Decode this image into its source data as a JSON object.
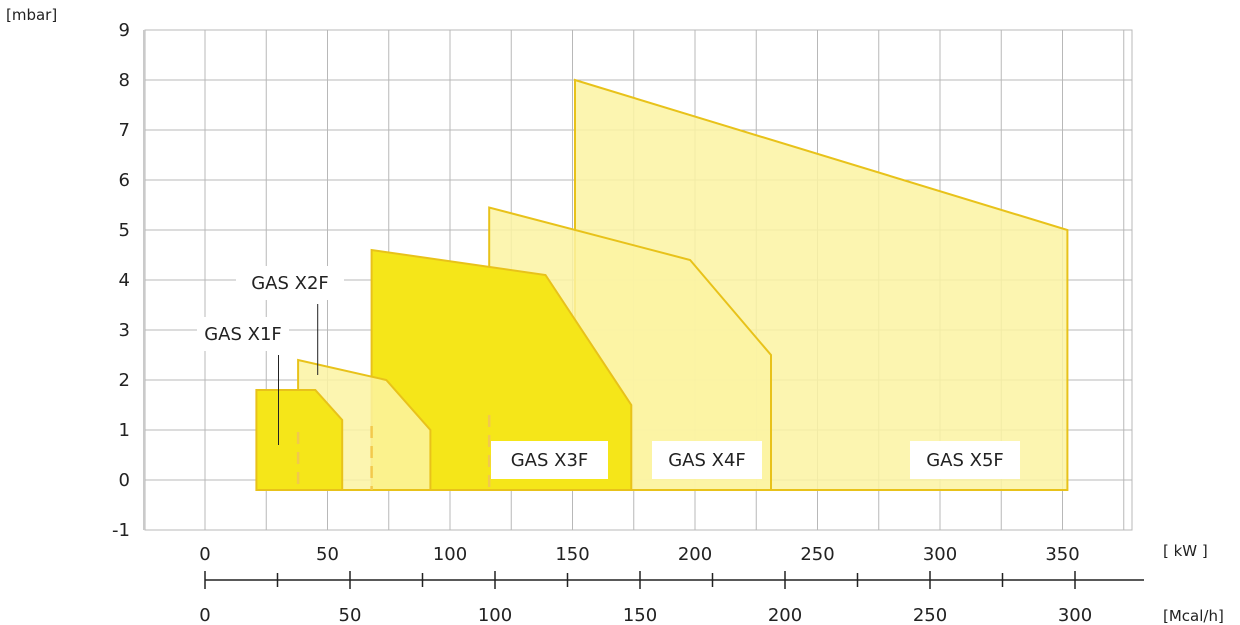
{
  "chart_data": {
    "type": "area",
    "title": "",
    "ylabel": "[mbar]",
    "xlabel": "[ kW ]",
    "secondary_xlabel": "[Mcal/h]",
    "ylim": [
      -1,
      9
    ],
    "xlim": [
      -25,
      375
    ],
    "yticks": [
      "-1",
      "0",
      "1",
      "2",
      "3",
      "4",
      "5",
      "6",
      "7",
      "8",
      "9"
    ],
    "xticks_kw": [
      "0",
      "50",
      "100",
      "150",
      "200",
      "250",
      "300",
      "350"
    ],
    "xticks_mcal": [
      "0",
      "50",
      "100",
      "150",
      "200",
      "250",
      "300"
    ],
    "grid": true,
    "colors": {
      "light_fill": "#fbf3a2",
      "dark_fill": "#f5e619",
      "edge": "#e8c21a",
      "grid": "#b8b8b8"
    },
    "series": [
      {
        "name": "GAS X5F",
        "shade": "light",
        "outline": [
          [
            151,
            -0.2
          ],
          [
            151,
            8
          ],
          [
            352,
            5
          ],
          [
            352,
            -0.2
          ]
        ],
        "dashes": []
      },
      {
        "name": "GAS X4F",
        "shade": "light",
        "outline": [
          [
            116,
            -0.2
          ],
          [
            116,
            5.45
          ],
          [
            198,
            4.4
          ],
          [
            231,
            2.5
          ],
          [
            231,
            -0.2
          ]
        ],
        "dashes": [
          151
        ]
      },
      {
        "name": "GAS X3F",
        "shade": "dark",
        "outline": [
          [
            68,
            -0.2
          ],
          [
            68,
            4.6
          ],
          [
            139,
            4.1
          ],
          [
            174,
            1.5
          ],
          [
            174,
            -0.2
          ]
        ],
        "dashes": [
          116
        ]
      },
      {
        "name": "GAS X2F",
        "shade": "light",
        "outline": [
          [
            38,
            -0.2
          ],
          [
            38,
            2.4
          ],
          [
            74,
            2.0
          ],
          [
            92,
            1.0
          ],
          [
            92,
            -0.2
          ]
        ],
        "dashes": [
          68
        ]
      },
      {
        "name": "GAS X1F",
        "shade": "dark",
        "outline": [
          [
            21,
            -0.2
          ],
          [
            21,
            1.8
          ],
          [
            45,
            1.8
          ],
          [
            56,
            1.2
          ],
          [
            56,
            -0.2
          ]
        ],
        "dashes": [
          38
        ]
      }
    ],
    "annotations": [
      {
        "text": "GAS X1F",
        "pointer": [
          30,
          0.7
        ],
        "pointer_top": [
          30,
          1.8
        ]
      },
      {
        "text": "GAS X2F",
        "pointer": [
          46,
          2.1
        ],
        "pointer_top": [
          46,
          3.8
        ]
      },
      {
        "text": "GAS X3F"
      },
      {
        "text": "GAS X4F"
      },
      {
        "text": "GAS X5F"
      }
    ]
  }
}
